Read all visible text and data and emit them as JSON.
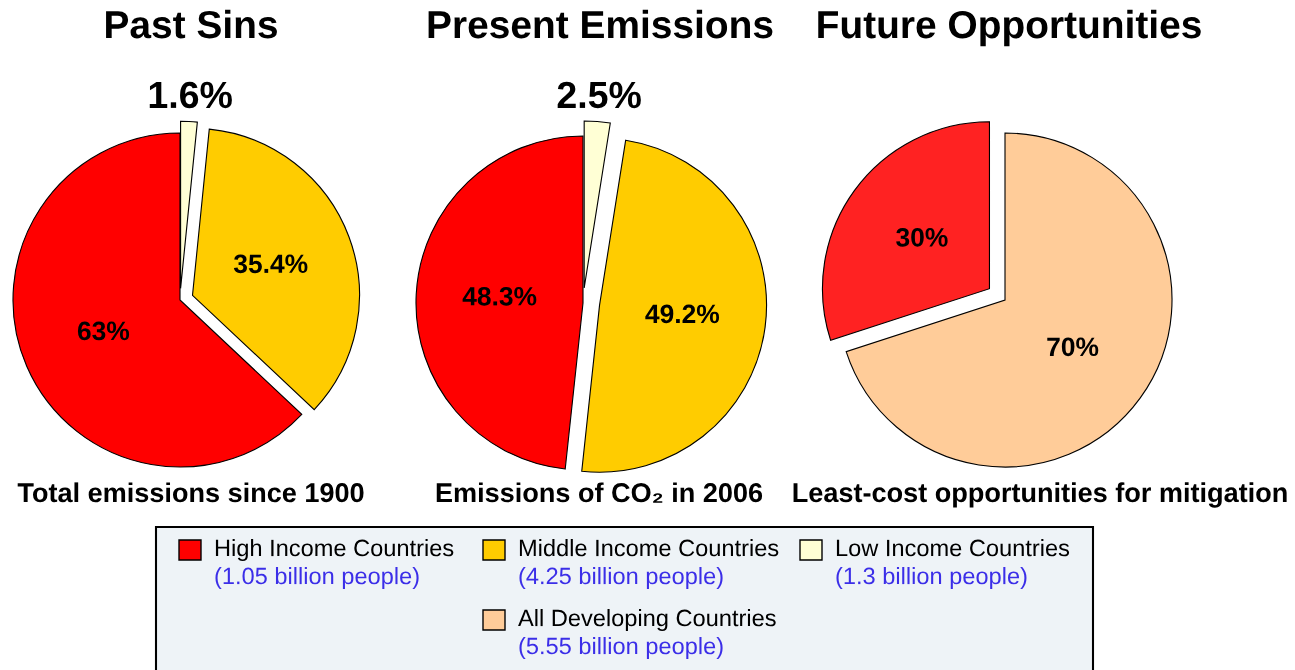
{
  "chart_data": [
    {
      "type": "pie",
      "title": "Past Sins",
      "categories": [
        "High Income Countries\n(1.05 billion people)",
        "Middle Income Countries\n(4.25 billion people)",
        "Low Income Countries\n(1.3 billion people)"
      ],
      "values": [
        63,
        35.4,
        1.6
      ],
      "colors": [
        "#ff0000",
        "#ffcc00",
        "#ffffd5"
      ],
      "value_labels": [
        "63%",
        "35.4%",
        "1.6%"
      ],
      "annotations": [
        "Total emissions since 1900"
      ],
      "legend": "bottom"
    },
    {
      "type": "pie",
      "title": "Present Emissions",
      "categories": [
        null,
        null,
        null
      ],
      "values": [
        48.3,
        49.2,
        2.5
      ],
      "colors": [
        "#ff0000",
        "#ffcc00",
        "#ffffd5"
      ],
      "value_labels": [
        "48.3%",
        "49.2%",
        "2.5%"
      ],
      "annotations": [
        "Emissions of CO₂ in 2006"
      ]
    },
    {
      "type": "pie",
      "title": "Future Opportunities",
      "categories": [
        null,
        "All Developing Countries\n(5.55 billion people)"
      ],
      "values": [
        30,
        70
      ],
      "colors": [
        "#ff2222",
        "#ffcc99"
      ],
      "value_labels": [
        "30%",
        "70%"
      ],
      "annotations": [
        "Least-cost opportunities for mitigation"
      ],
      "legend": "bottom"
    }
  ]
}
